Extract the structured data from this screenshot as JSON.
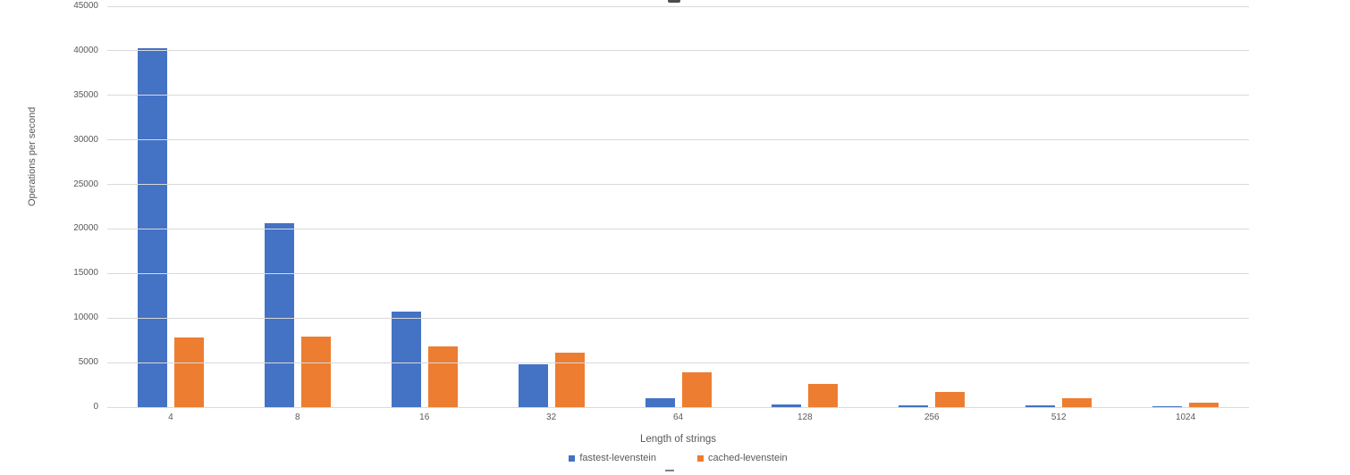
{
  "chart_data": {
    "type": "bar",
    "categories": [
      "4",
      "8",
      "16",
      "32",
      "64",
      "128",
      "256",
      "512",
      "1024"
    ],
    "series": [
      {
        "name": "fastest-levenstein",
        "color": "#4472C4",
        "values": [
          40300,
          20600,
          10700,
          4800,
          1000,
          350,
          200,
          200,
          150
        ]
      },
      {
        "name": "cached-levenstein",
        "color": "#ED7D31",
        "values": [
          7800,
          7900,
          6800,
          6100,
          3900,
          2600,
          1700,
          1050,
          500
        ]
      }
    ],
    "xlabel": "Length of strings",
    "ylabel": "Operations per second",
    "ylim": [
      0,
      45000
    ],
    "yticks": [
      0,
      5000,
      10000,
      15000,
      20000,
      25000,
      30000,
      35000,
      40000,
      45000
    ],
    "grid": true,
    "legend_position": "bottom"
  },
  "colors": {
    "axis_text": "#595959",
    "gridline": "#d9d9d9",
    "background": "#ffffff"
  }
}
